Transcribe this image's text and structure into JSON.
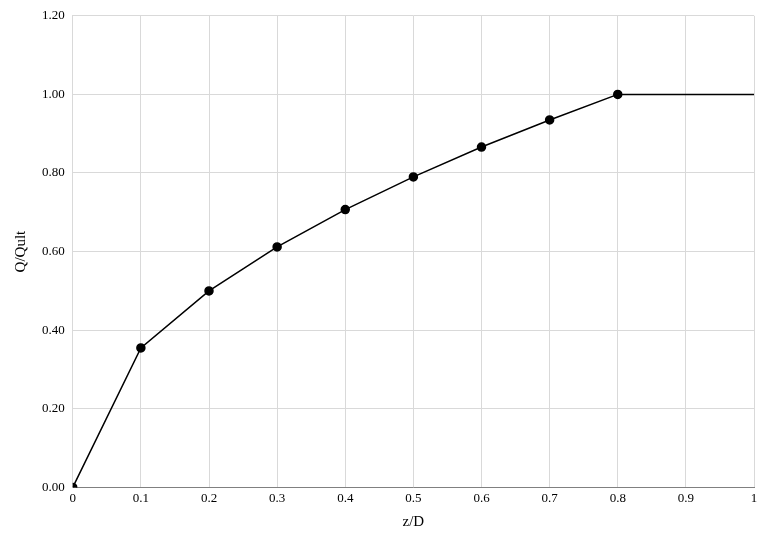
{
  "chart_data": {
    "type": "line",
    "x_label": "z/D",
    "y_label": "Q/Qult",
    "series": [
      {
        "x": [
          0,
          0.1,
          0.2,
          0.3,
          0.4,
          0.5,
          0.6,
          0.7,
          0.8
        ],
        "values": [
          0,
          0.355,
          0.5,
          0.612,
          0.707,
          0.79,
          0.866,
          0.935,
          1.0
        ],
        "color": "#000000",
        "marker": "circle",
        "line_style": "solid"
      },
      {
        "x": [
          0.8,
          1
        ],
        "values": [
          1.0,
          1.0
        ],
        "color": "#000000",
        "marker": "none",
        "line_style": "solid"
      }
    ],
    "xlim": [
      0,
      1
    ],
    "xticks": [
      0,
      0.1,
      0.2,
      0.3,
      0.4,
      0.5,
      0.6,
      0.7,
      0.8,
      0.9,
      1
    ],
    "ylim": [
      0,
      1.2
    ],
    "yticks": [
      {
        "value": 0,
        "label": "0.00"
      },
      {
        "value": 0.2,
        "label": "0.20"
      },
      {
        "value": 0.4,
        "label": "0.40"
      },
      {
        "value": 0.6,
        "label": "0.60"
      },
      {
        "value": 0.8,
        "label": "0.80"
      },
      {
        "value": 1.0,
        "label": "1.00"
      },
      {
        "value": 1.2,
        "label": "1.20"
      }
    ],
    "grid": true
  }
}
